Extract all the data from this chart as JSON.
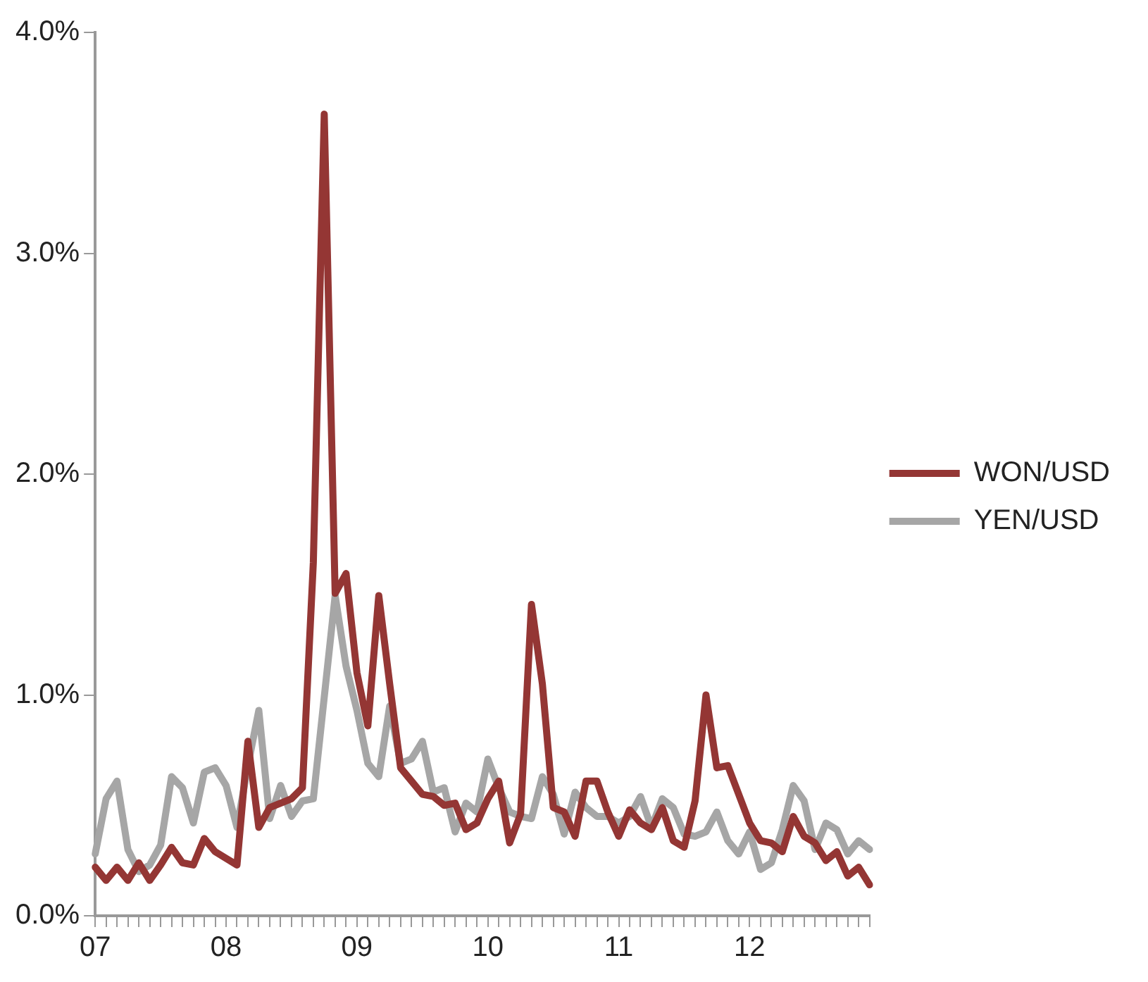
{
  "chart_data": {
    "type": "line",
    "categories": [
      "07",
      null,
      null,
      null,
      null,
      null,
      null,
      null,
      null,
      null,
      null,
      null,
      "08",
      null,
      null,
      null,
      null,
      null,
      null,
      null,
      null,
      null,
      null,
      null,
      "09",
      null,
      null,
      null,
      null,
      null,
      null,
      null,
      null,
      null,
      null,
      null,
      "10",
      null,
      null,
      null,
      null,
      null,
      null,
      null,
      null,
      null,
      null,
      null,
      "11",
      null,
      null,
      null,
      null,
      null,
      null,
      null,
      null,
      null,
      null,
      null,
      "12",
      null,
      null,
      null,
      null,
      null,
      null,
      null,
      null,
      null,
      null,
      null
    ],
    "series": [
      {
        "name": "WON/USD",
        "color": "#943634",
        "values": [
          0.22,
          0.16,
          0.22,
          0.16,
          0.24,
          0.16,
          0.23,
          0.31,
          0.24,
          0.23,
          0.35,
          0.29,
          0.26,
          0.23,
          0.79,
          0.4,
          0.49,
          0.51,
          0.53,
          0.58,
          1.6,
          3.63,
          1.46,
          1.55,
          1.1,
          0.86,
          1.45,
          1.05,
          0.67,
          0.61,
          0.55,
          0.54,
          0.5,
          0.51,
          0.39,
          0.42,
          0.53,
          0.61,
          0.33,
          0.46,
          1.41,
          1.05,
          0.49,
          0.47,
          0.36,
          0.61,
          0.61,
          0.47,
          0.36,
          0.48,
          0.42,
          0.39,
          0.49,
          0.34,
          0.31,
          0.52,
          1.0,
          0.67,
          0.68,
          0.55,
          0.42,
          0.34,
          0.33,
          0.29,
          0.45,
          0.36,
          0.33,
          0.25,
          0.29,
          0.18,
          0.22,
          0.14
        ]
      },
      {
        "name": "YEN/USD",
        "color": "#a6a6a6",
        "values": [
          0.28,
          0.53,
          0.61,
          0.3,
          0.2,
          0.23,
          0.32,
          0.63,
          0.58,
          0.42,
          0.65,
          0.67,
          0.59,
          0.4,
          0.68,
          0.93,
          0.44,
          0.59,
          0.45,
          0.52,
          0.53,
          0.99,
          1.45,
          1.13,
          0.93,
          0.69,
          0.63,
          0.95,
          0.69,
          0.71,
          0.79,
          0.56,
          0.58,
          0.38,
          0.51,
          0.47,
          0.71,
          0.58,
          0.47,
          0.45,
          0.44,
          0.63,
          0.55,
          0.37,
          0.56,
          0.49,
          0.45,
          0.45,
          0.42,
          0.45,
          0.54,
          0.4,
          0.53,
          0.49,
          0.37,
          0.36,
          0.38,
          0.47,
          0.34,
          0.28,
          0.38,
          0.21,
          0.24,
          0.39,
          0.59,
          0.52,
          0.3,
          0.42,
          0.39,
          0.28,
          0.34,
          0.3
        ]
      }
    ],
    "ylim": [
      0,
      4
    ],
    "yticks": [
      {
        "value": 0,
        "label": "0.0%"
      },
      {
        "value": 1,
        "label": "1.0%"
      },
      {
        "value": 2,
        "label": "2.0%"
      },
      {
        "value": 3,
        "label": "3.0%"
      },
      {
        "value": 4,
        "label": "4.0%"
      }
    ],
    "legend": "right",
    "grid": false,
    "marker": "none",
    "line_style": "solid"
  }
}
